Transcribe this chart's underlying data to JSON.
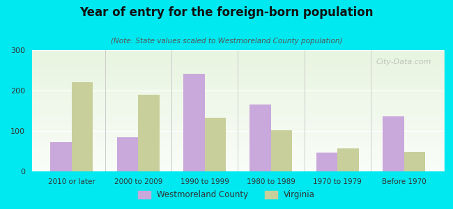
{
  "title": "Year of entry for the foreign-born population",
  "subtitle": "(Note: State values scaled to Westmoreland County population)",
  "categories": [
    "2010 or later",
    "2000 to 2009",
    "1990 to 1999",
    "1980 to 1989",
    "1970 to 1979",
    "Before 1970"
  ],
  "westmoreland": [
    72,
    85,
    242,
    165,
    47,
    137
  ],
  "virginia": [
    220,
    190,
    133,
    102,
    57,
    48
  ],
  "bar_color_west": "#c9a8dc",
  "bar_color_va": "#c8cf9a",
  "background_outer": "#00e8f0",
  "background_inner_top": "#e8f5e0",
  "background_inner_bottom": "#f8fdf5",
  "ylim": [
    0,
    300
  ],
  "yticks": [
    0,
    100,
    200,
    300
  ],
  "bar_width": 0.32,
  "watermark": "City-Data.com",
  "legend_west": "Westmoreland County",
  "legend_va": "Virginia"
}
